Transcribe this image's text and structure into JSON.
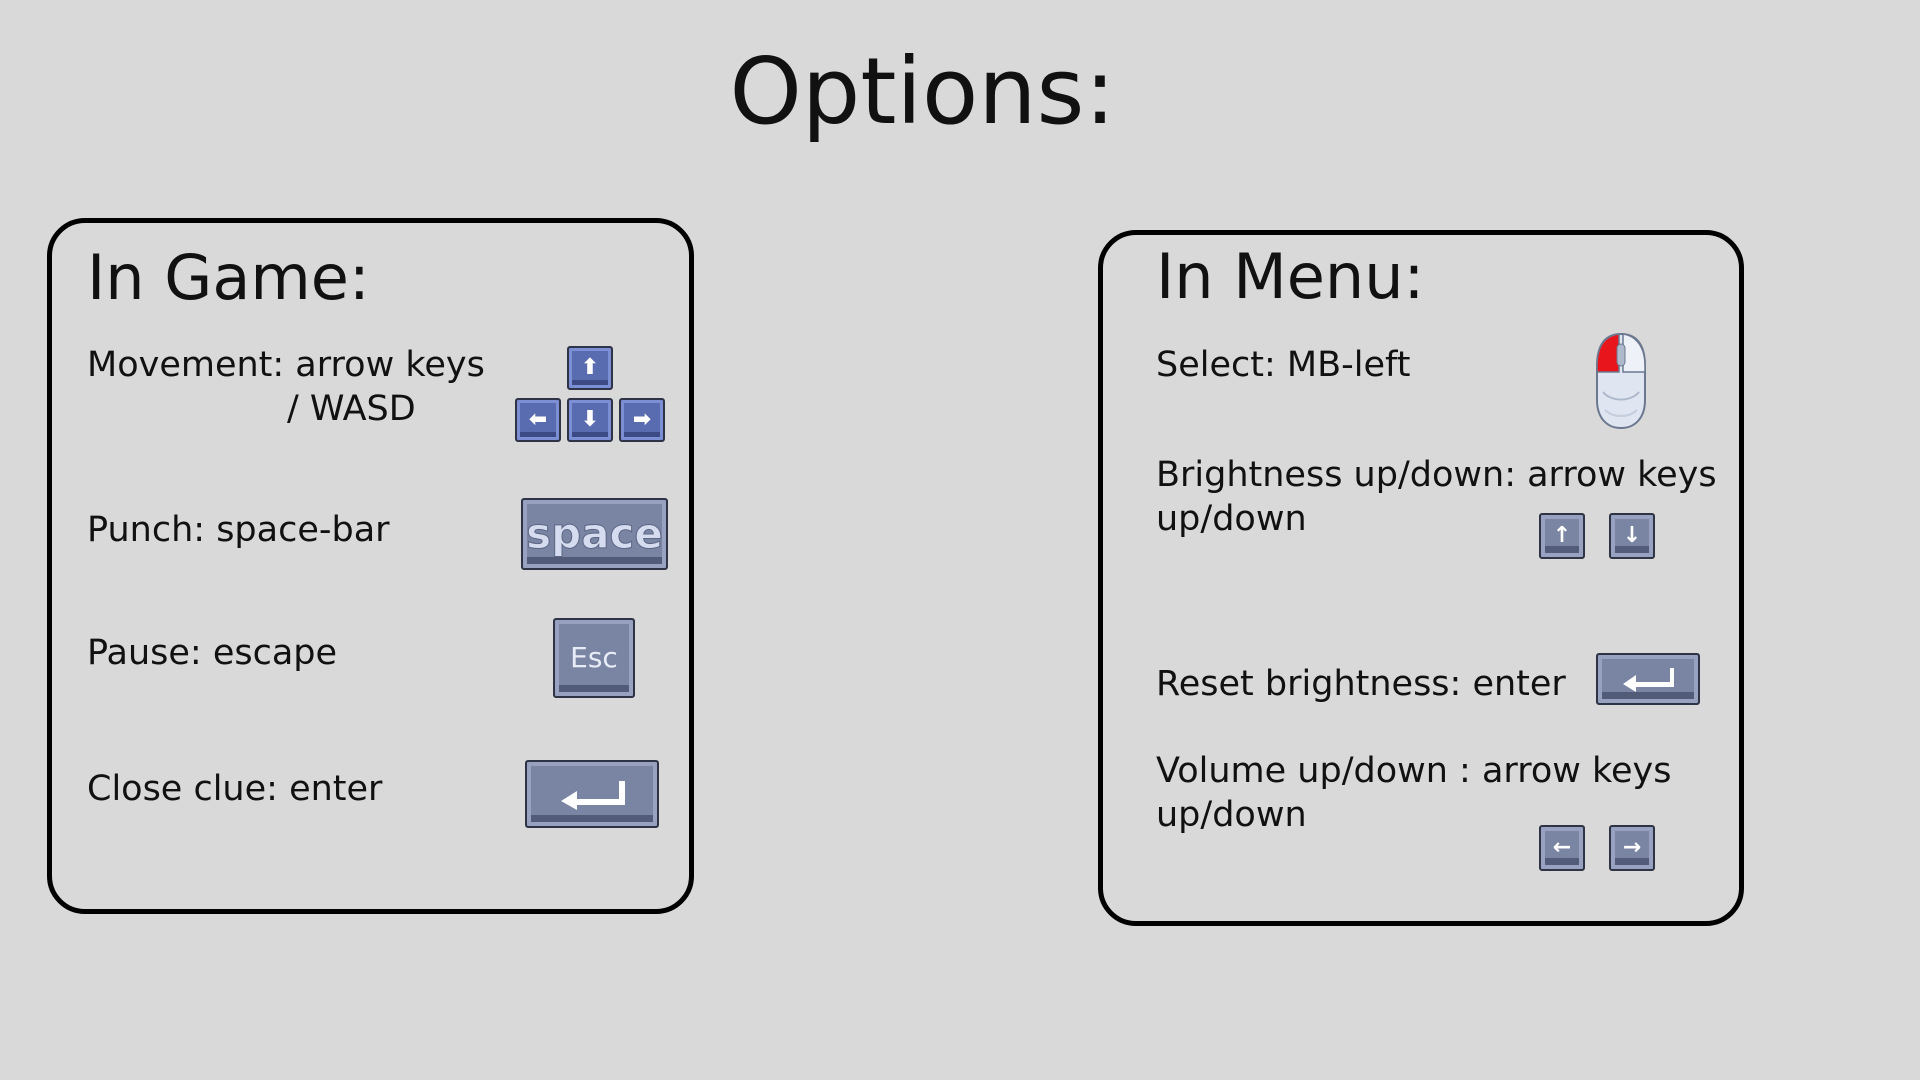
{
  "title": "Options:",
  "in_game": {
    "heading": "In Game:",
    "movement": {
      "line1": "Movement: arrow keys",
      "line2": "/ WASD"
    },
    "punch": "Punch: space-bar",
    "pause": "Pause: escape",
    "close_clue": "Close clue: enter",
    "keys": {
      "up": "⬆",
      "left": "⬅",
      "down": "⬇",
      "right": "➡",
      "space": "space",
      "esc": "Esc"
    }
  },
  "in_menu": {
    "heading": "In Menu:",
    "select": "Select: MB-left",
    "brightness": {
      "line1": "Brightness up/down: arrow keys",
      "line2": "up/down"
    },
    "reset_brightness": "Reset brightness: enter",
    "volume": {
      "line1": "Volume up/down : arrow keys",
      "line2": "up/down"
    },
    "keys": {
      "up": "↑",
      "down": "↓",
      "left": "←",
      "right": "→"
    }
  },
  "colors": {
    "background": "#d9d9d9",
    "key_blue": "#5a6cb0",
    "key_grey": "#7a85a4",
    "mouse_button": "#e8151c"
  }
}
